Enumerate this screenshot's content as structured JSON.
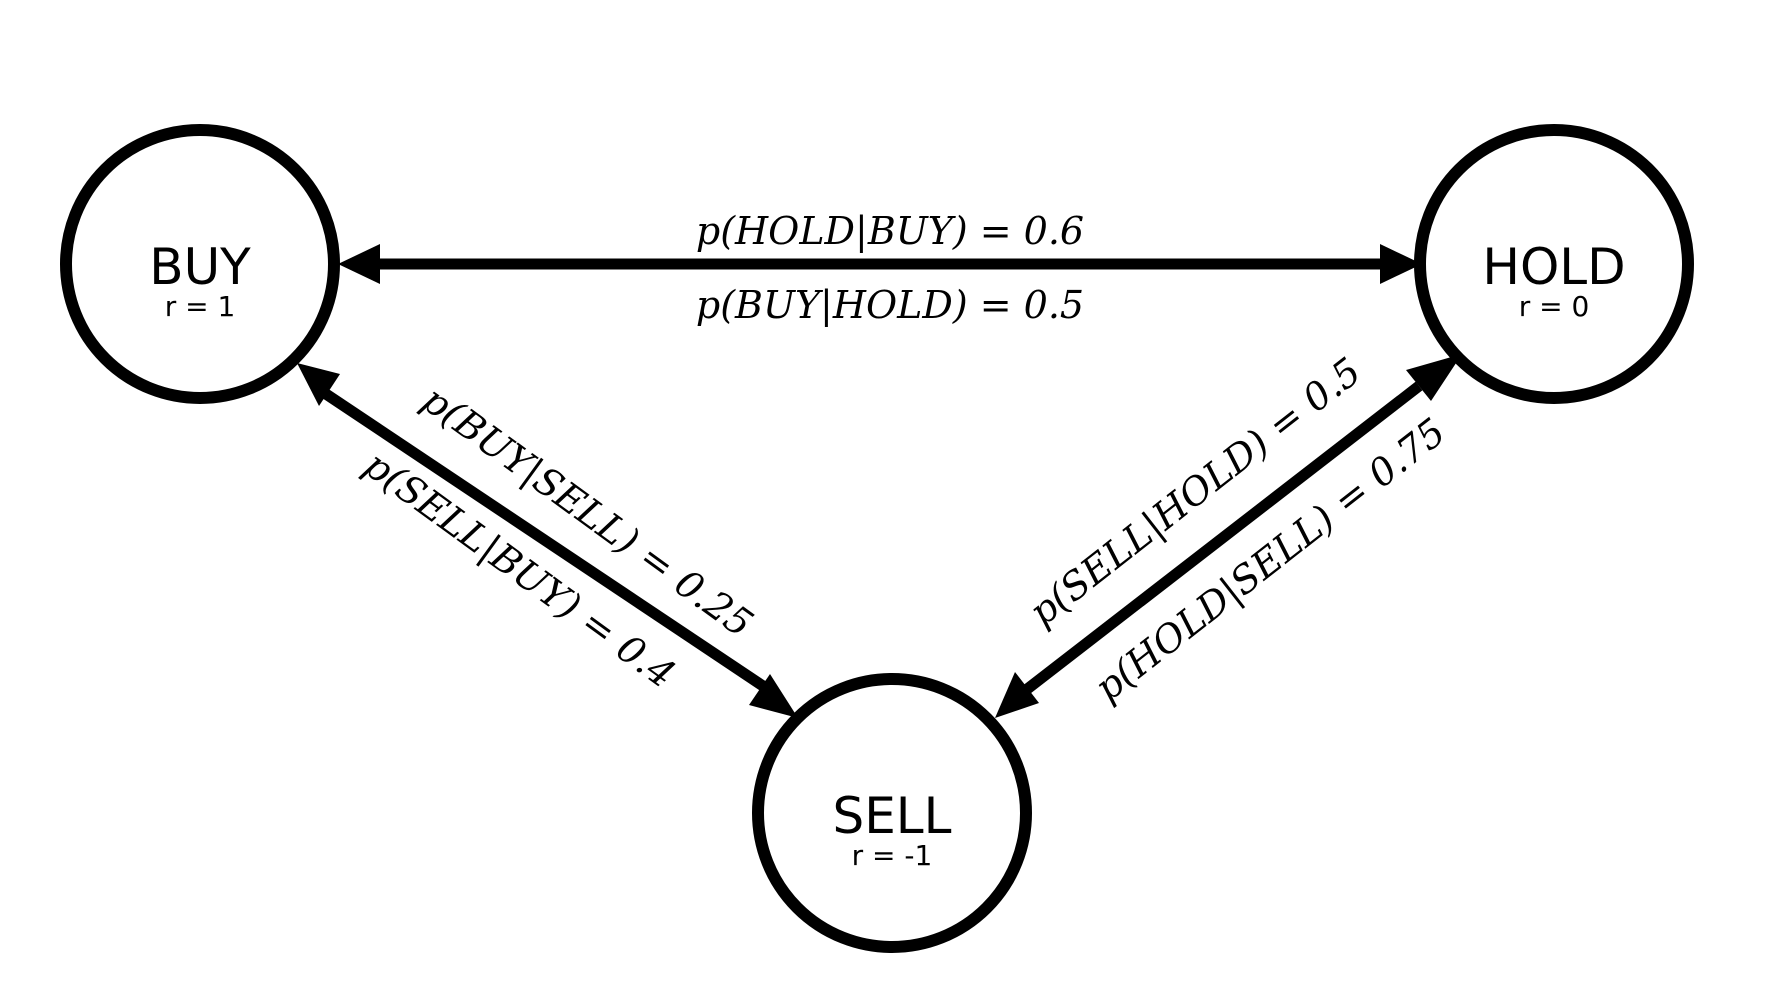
{
  "colors": {
    "background": "#ffffff",
    "stroke": "#000000",
    "text": "#000000"
  },
  "nodes": {
    "buy": {
      "name": "BUY",
      "reward": "r = 1"
    },
    "hold": {
      "name": "HOLD",
      "reward": "r = 0"
    },
    "sell": {
      "name": "SELL",
      "reward": "r = -1"
    }
  },
  "edges": {
    "buy_hold": {
      "top_label": "p(HOLD|BUY) = 0.6",
      "bottom_label": "p(BUY|HOLD) = 0.5"
    },
    "buy_sell": {
      "top_label": "p(BUY|SELL) = 0.25",
      "bottom_label": "p(SELL|BUY) = 0.4"
    },
    "hold_sell": {
      "top_label": "p(SELL|HOLD) = 0.5",
      "bottom_label": "p(HOLD|SELL) = 0.75"
    }
  }
}
